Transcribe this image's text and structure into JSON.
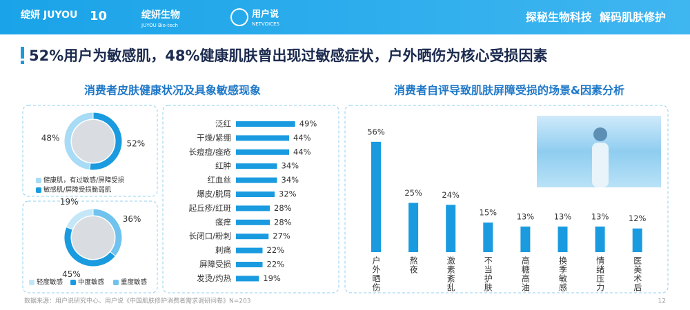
{
  "header": {
    "logos": [
      "绽妍 JUYOU",
      "10",
      "绽妍生物",
      "JUYOU Bio-tech",
      "用户说",
      "NETVOICES"
    ],
    "tagline": "探秘生物科技  解码肌肤修护"
  },
  "title": "52%用户为敏感肌，48%健康肌肤曾出现过敏感症状，户外晒伤为核心受损因素",
  "left_panel": {
    "title": "消费者皮肤健康状况及具象敏感现象"
  },
  "chart_data": [
    {
      "type": "pie",
      "categories": [
        "健康肌，有过敏感/屏障受损",
        "敏感肌/屏障受损脆弱肌"
      ],
      "values": [
        48,
        52
      ],
      "value_labels": [
        "48%",
        "52%"
      ],
      "colors": [
        "#a8dbf5",
        "#1a9be0"
      ],
      "donut": true
    },
    {
      "type": "pie",
      "categories": [
        "轻度敏感",
        "中度敏感",
        "重度敏感"
      ],
      "values": [
        19,
        45,
        36
      ],
      "value_labels": [
        "19%",
        "45%",
        "36%"
      ],
      "colors": [
        "#c4e7f8",
        "#1a9be0",
        "#6fc3ee"
      ],
      "donut": true
    },
    {
      "type": "hbar",
      "categories": [
        "泛红",
        "干燥/紧绷",
        "长痘痘/痤疮",
        "红肿",
        "红血丝",
        "爆皮/脱屑",
        "起丘疹/红斑",
        "瘙痒",
        "长闭口/粉刺",
        "刺痛",
        "屏障受损",
        "发烫/灼热"
      ],
      "values": [
        49,
        44,
        44,
        34,
        34,
        32,
        28,
        28,
        27,
        22,
        22,
        19
      ],
      "value_labels": [
        "49%",
        "44%",
        "44%",
        "34%",
        "34%",
        "32%",
        "28%",
        "28%",
        "27%",
        "22%",
        "22%",
        "19%"
      ],
      "color": "#1a9be0"
    },
    {
      "type": "bar",
      "title": "消费者自评导致肌肤屏障受损的场景&因素分析",
      "categories": [
        "户外晒伤",
        "熬夜",
        "激素紊乱",
        "不当护肤",
        "高糖高油",
        "换季敏感",
        "情绪压力",
        "医美术后"
      ],
      "values": [
        56,
        25,
        24,
        15,
        13,
        13,
        13,
        12
      ],
      "value_labels": [
        "56%",
        "25%",
        "24%",
        "15%",
        "13%",
        "13%",
        "13%",
        "12%"
      ],
      "color": "#1a9be0"
    }
  ],
  "footer": {
    "source": "数据来源：用户说研究中心、用户说《中国肌肤修护消费者需求调研问卷》N=203",
    "page": "12"
  }
}
